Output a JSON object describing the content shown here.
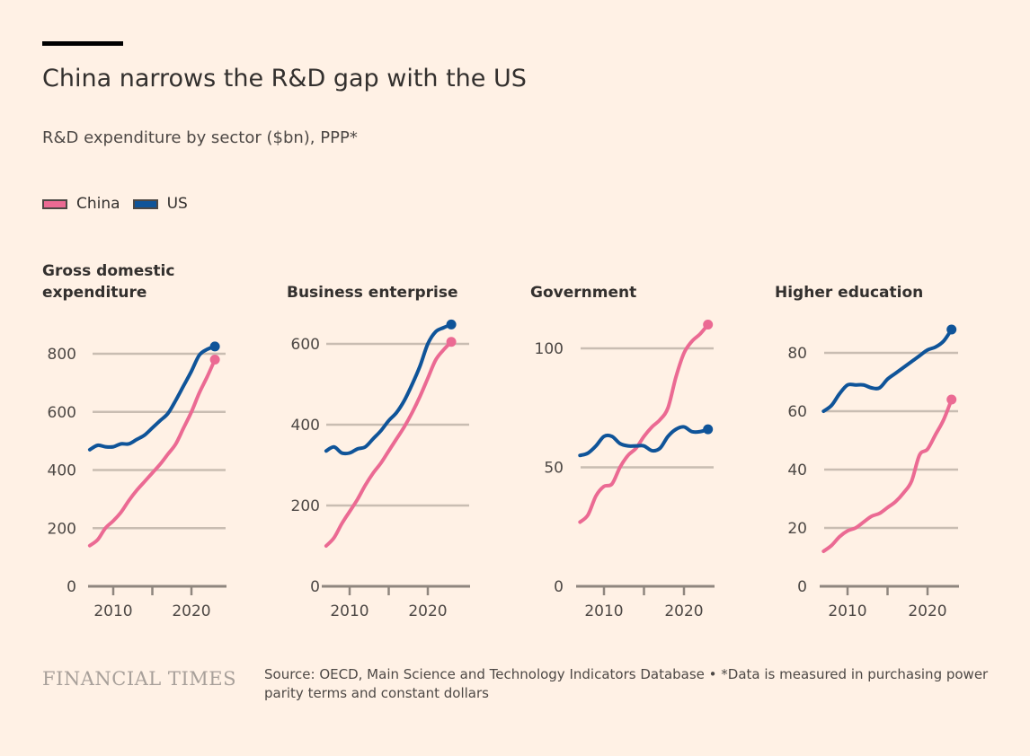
{
  "header": {
    "title": "China narrows the R&D gap with the US",
    "subtitle": "R&D expenditure by sector ($bn), PPP*"
  },
  "legend": [
    {
      "label": "China",
      "color": "#eb6a93"
    },
    {
      "label": "US",
      "color": "#0f5499"
    }
  ],
  "footer": {
    "logo": "FINANCIAL TIMES",
    "source": "Source: OECD, Main Science and Technology Indicators Database • *Data is measured in purchasing power parity terms and constant dollars"
  },
  "chart_data": [
    {
      "type": "line",
      "title": "Gross domestic expenditure",
      "x": [
        2007,
        2008,
        2009,
        2010,
        2011,
        2012,
        2013,
        2014,
        2015,
        2016,
        2017,
        2018,
        2019,
        2020,
        2021,
        2022,
        2023
      ],
      "xticks": [
        "2010",
        "2020"
      ],
      "yticks": [
        "0",
        "200",
        "400",
        "600",
        "800"
      ],
      "ylim": [
        0,
        850
      ],
      "grid": true,
      "series": [
        {
          "name": "China",
          "values": [
            140,
            160,
            200,
            225,
            255,
            295,
            330,
            360,
            390,
            420,
            455,
            490,
            545,
            600,
            665,
            720,
            780
          ]
        },
        {
          "name": "US",
          "values": [
            470,
            485,
            480,
            480,
            490,
            490,
            505,
            520,
            545,
            570,
            595,
            640,
            690,
            740,
            795,
            815,
            825
          ]
        }
      ]
    },
    {
      "type": "line",
      "title": "Business enterprise",
      "x": [
        2007,
        2008,
        2009,
        2010,
        2011,
        2012,
        2013,
        2014,
        2015,
        2016,
        2017,
        2018,
        2019,
        2020,
        2021,
        2022,
        2023
      ],
      "xticks": [
        "2010",
        "2020"
      ],
      "yticks": [
        "0",
        "200",
        "400",
        "600"
      ],
      "ylim": [
        0,
        660
      ],
      "grid": true,
      "series": [
        {
          "name": "China",
          "values": [
            100,
            120,
            155,
            185,
            215,
            250,
            280,
            305,
            335,
            365,
            395,
            430,
            470,
            515,
            560,
            585,
            605
          ]
        },
        {
          "name": "US",
          "values": [
            335,
            345,
            330,
            330,
            340,
            345,
            365,
            385,
            410,
            430,
            460,
            500,
            545,
            600,
            630,
            640,
            648
          ]
        }
      ]
    },
    {
      "type": "line",
      "title": "Government",
      "x": [
        2007,
        2008,
        2009,
        2010,
        2011,
        2012,
        2013,
        2014,
        2015,
        2016,
        2017,
        2018,
        2019,
        2020,
        2021,
        2022,
        2023
      ],
      "xticks": [
        "2010",
        "2020"
      ],
      "yticks": [
        "0",
        "50",
        "100"
      ],
      "ylim": [
        0,
        112
      ],
      "grid": true,
      "series": [
        {
          "name": "China",
          "values": [
            27,
            30,
            38,
            42,
            43,
            50,
            55,
            58,
            63,
            67,
            70,
            75,
            88,
            98,
            103,
            106,
            110
          ]
        },
        {
          "name": "US",
          "values": [
            55,
            56,
            59,
            63,
            63,
            60,
            59,
            59,
            59,
            57,
            58,
            63,
            66,
            67,
            65,
            65,
            66
          ]
        }
      ]
    },
    {
      "type": "line",
      "title": "Higher education",
      "x": [
        2007,
        2008,
        2009,
        2010,
        2011,
        2012,
        2013,
        2014,
        2015,
        2016,
        2017,
        2018,
        2019,
        2020,
        2021,
        2022,
        2023
      ],
      "xticks": [
        "2010",
        "2020"
      ],
      "yticks": [
        "0",
        "20",
        "40",
        "60",
        "80"
      ],
      "ylim": [
        0,
        90
      ],
      "grid": true,
      "series": [
        {
          "name": "China",
          "values": [
            12,
            14,
            17,
            19,
            20,
            22,
            24,
            25,
            27,
            29,
            32,
            36,
            45,
            47,
            52,
            57,
            64
          ]
        },
        {
          "name": "US",
          "values": [
            60,
            62,
            66,
            69,
            69,
            69,
            68,
            68,
            71,
            73,
            75,
            77,
            79,
            81,
            82,
            84,
            88
          ]
        }
      ]
    }
  ]
}
